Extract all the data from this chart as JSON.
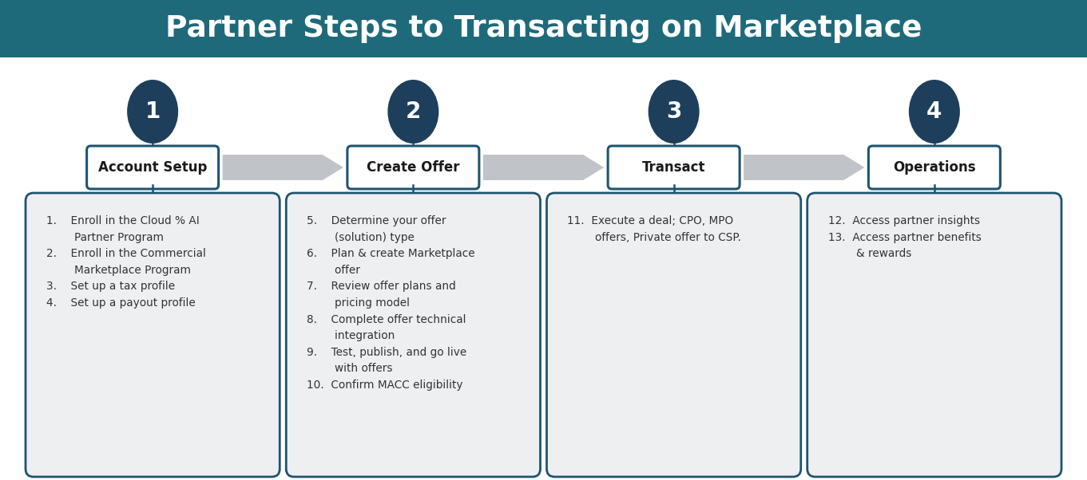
{
  "title": "Partner Steps to Transacting on Marketplace",
  "title_bg_color": "#1e6a7a",
  "title_text_color": "#ffffff",
  "bg_color": "#ffffff",
  "step_bg_color": "#eeeff1",
  "step_border_color": "#1e5470",
  "circle_bg_color": "#1e3f5c",
  "circle_text_color": "#ffffff",
  "arrow_color": "#c0c4c8",
  "connector_color": "#1e5470",
  "steps": [
    {
      "number": "1",
      "title": "Account Setup",
      "items": "1.    Enroll in the Cloud % AI\n        Partner Program\n2.    Enroll in the Commercial\n        Marketplace Program\n3.    Set up a tax profile\n4.    Set up a payout profile"
    },
    {
      "number": "2",
      "title": "Create Offer",
      "items": "5.    Determine your offer\n        (solution) type\n6.    Plan & create Marketplace\n        offer\n7.    Review offer plans and\n        pricing model\n8.    Complete offer technical\n        integration\n9.    Test, publish, and go live\n        with offers\n10.  Confirm MACC eligibility"
    },
    {
      "number": "3",
      "title": "Transact",
      "items": "11.  Execute a deal; CPO, MPO\n        offers, Private offer to CSP."
    },
    {
      "number": "4",
      "title": "Operations",
      "items": "12.  Access partner insights\n13.  Access partner benefits\n        & rewards"
    }
  ]
}
